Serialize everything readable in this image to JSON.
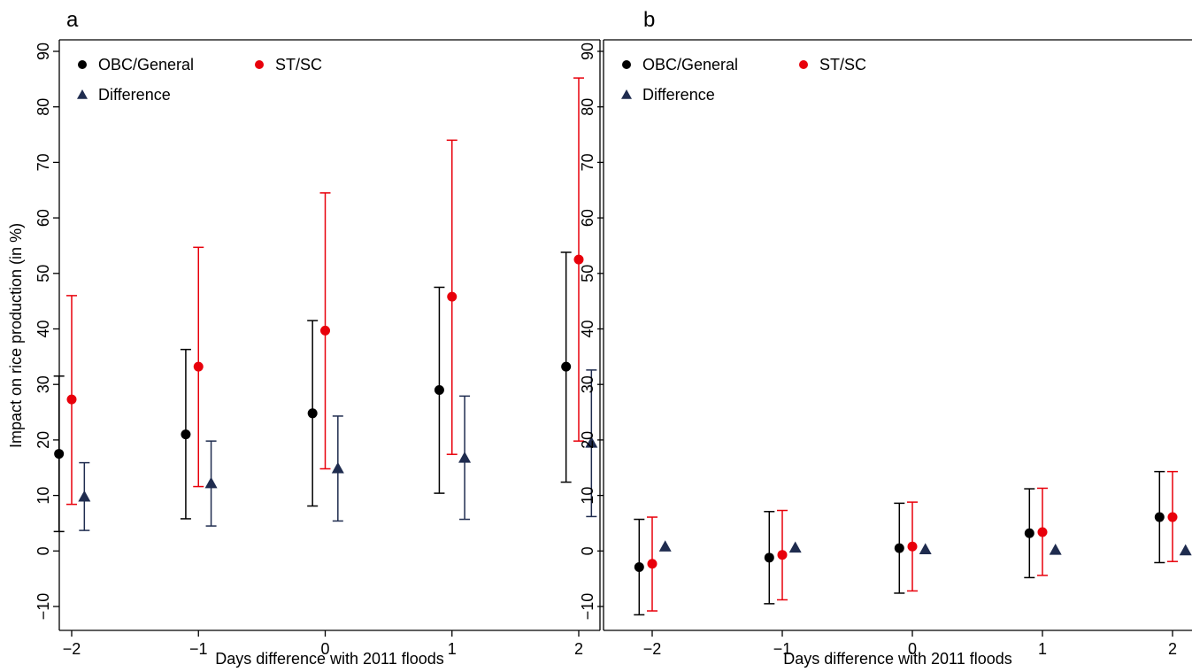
{
  "colors": {
    "obc_general": "#000000",
    "st_sc": "#e8000b",
    "difference": "#1f2c4f",
    "axis": "#000000"
  },
  "shared": {
    "xlabel": "Days difference with 2011 floods",
    "ylabel": "Impact on rice production (in %)",
    "x_ticks": [
      "−2",
      "−1",
      "0",
      "1",
      "2"
    ],
    "y_ticks": [
      "−10",
      "0",
      "10",
      "20",
      "30",
      "40",
      "50",
      "60",
      "70",
      "80",
      "90"
    ]
  },
  "chart_data": [
    {
      "panel": "a",
      "type": "scatter",
      "xlabel": "Days difference with 2011 floods",
      "ylabel": "Impact on rice production (in %)",
      "x_categories": [
        -2,
        -1,
        0,
        1,
        2
      ],
      "ylim": [
        -10,
        90
      ],
      "legend_position": "top-left",
      "series": [
        {
          "name": "OBC/General",
          "marker": "circle",
          "offset": -0.1,
          "values": [
            17.5,
            21,
            24.8,
            29,
            33.2
          ],
          "lower": [
            3.5,
            5.8,
            8.1,
            10.4,
            12.4
          ],
          "upper": [
            31.5,
            36.3,
            41.5,
            47.5,
            53.8
          ]
        },
        {
          "name": "ST/SC",
          "marker": "circle",
          "offset": 0,
          "values": [
            27.3,
            33.2,
            39.7,
            45.8,
            52.5
          ],
          "lower": [
            8.4,
            11.6,
            14.8,
            17.4,
            19.8
          ],
          "upper": [
            46,
            54.7,
            64.5,
            74,
            85.2
          ]
        },
        {
          "name": "Difference",
          "marker": "triangle",
          "offset": 0.1,
          "values": [
            9.8,
            12.2,
            14.9,
            16.8,
            19.5
          ],
          "lower": [
            3.7,
            4.5,
            5.4,
            5.7,
            6.2
          ],
          "upper": [
            15.9,
            19.8,
            24.3,
            27.9,
            32.6
          ]
        }
      ]
    },
    {
      "panel": "b",
      "type": "scatter",
      "xlabel": "Days difference with 2011 floods",
      "ylabel": "",
      "x_categories": [
        -2,
        -1,
        0,
        1,
        2
      ],
      "ylim": [
        -10,
        90
      ],
      "legend_position": "top-left",
      "series": [
        {
          "name": "OBC/General",
          "marker": "circle",
          "offset": -0.1,
          "values": [
            -2.9,
            -1.2,
            0.5,
            3.2,
            6.1
          ],
          "lower": [
            -11.5,
            -9.5,
            -7.6,
            -4.8,
            -2.1
          ],
          "upper": [
            5.7,
            7.1,
            8.6,
            11.2,
            14.3
          ]
        },
        {
          "name": "ST/SC",
          "marker": "circle",
          "offset": 0,
          "values": [
            -2.3,
            -0.7,
            0.8,
            3.4,
            6.1
          ],
          "lower": [
            -10.8,
            -8.8,
            -7.2,
            -4.4,
            -1.9
          ],
          "upper": [
            6.1,
            7.3,
            8.8,
            11.3,
            14.3
          ]
        },
        {
          "name": "Difference",
          "marker": "triangle",
          "offset": 0.1,
          "values": [
            0.8,
            0.6,
            0.3,
            0.2,
            0.1
          ],
          "lower": [
            0.8,
            0.6,
            0.3,
            0.2,
            0.1
          ],
          "upper": [
            0.8,
            0.6,
            0.3,
            0.2,
            0.1
          ]
        }
      ]
    }
  ]
}
